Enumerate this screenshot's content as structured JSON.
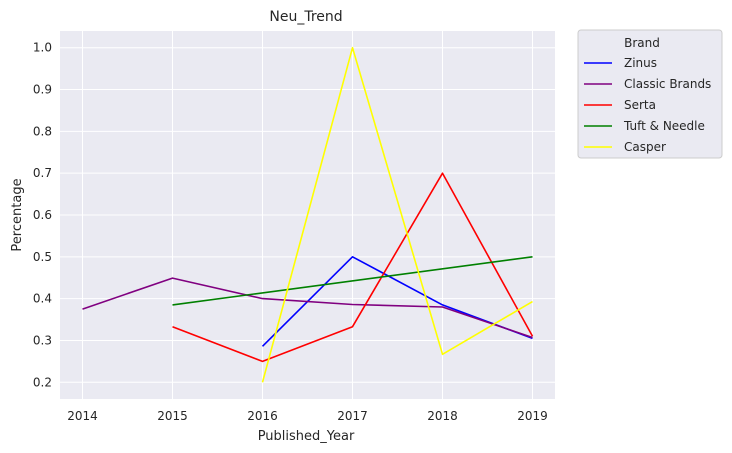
{
  "chart_data": {
    "type": "line",
    "title": "Neu_Trend",
    "xlabel": "Published_Year",
    "ylabel": "Percentage",
    "x": [
      2014,
      2015,
      2016,
      2017,
      2018,
      2019
    ],
    "xlim": [
      2013.75,
      2019.25
    ],
    "ylim": [
      0.16,
      1.04
    ],
    "yticks": [
      0.2,
      0.3,
      0.4,
      0.5,
      0.6,
      0.7,
      0.8,
      0.9,
      1.0
    ],
    "ytick_labels": [
      "0.2",
      "0.3",
      "0.4",
      "0.5",
      "0.6",
      "0.7",
      "0.8",
      "0.9",
      "1.0"
    ],
    "xtick_labels": [
      "2014",
      "2015",
      "2016",
      "2017",
      "2018",
      "2019"
    ],
    "grid": true,
    "legend": {
      "title": "Brand",
      "placement": "outside-top-right"
    },
    "series": [
      {
        "name": "Zinus",
        "color": "#0000ff",
        "x": [
          2016,
          2017,
          2018,
          2019
        ],
        "values": [
          0.286,
          0.5,
          0.385,
          0.305
        ]
      },
      {
        "name": "Classic Brands",
        "color": "#800080",
        "x": [
          2014,
          2015,
          2016,
          2017,
          2018,
          2019
        ],
        "values": [
          0.375,
          0.449,
          0.4,
          0.386,
          0.38,
          0.307
        ]
      },
      {
        "name": "Serta",
        "color": "#ff0000",
        "x": [
          2015,
          2016,
          2017,
          2018,
          2019
        ],
        "values": [
          0.333,
          0.25,
          0.333,
          0.7,
          0.31
        ]
      },
      {
        "name": "Tuft & Needle",
        "color": "#008000",
        "x": [
          2015,
          2019
        ],
        "values": [
          0.385,
          0.5
        ]
      },
      {
        "name": "Casper",
        "color": "#ffff00",
        "x": [
          2016,
          2017,
          2018,
          2019
        ],
        "values": [
          0.2,
          1.0,
          0.267,
          0.393
        ]
      }
    ]
  }
}
